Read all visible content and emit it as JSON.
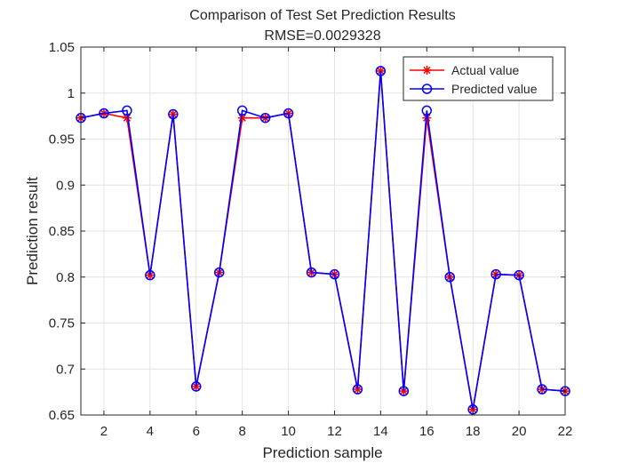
{
  "chart_data": {
    "type": "line",
    "title": "Comparison of Test Set Prediction Results",
    "subtitle": "RMSE=0.0029328",
    "xlabel": "Prediction sample",
    "ylabel": "Prediction result",
    "xlim": [
      1,
      22
    ],
    "ylim": [
      0.65,
      1.05
    ],
    "xticks": [
      2,
      4,
      6,
      8,
      10,
      12,
      14,
      16,
      18,
      20,
      22
    ],
    "yticks": [
      0.65,
      0.7,
      0.75,
      0.8,
      0.85,
      0.9,
      0.95,
      1,
      1.05
    ],
    "xtick_labels": [
      "2",
      "4",
      "6",
      "8",
      "10",
      "12",
      "14",
      "16",
      "18",
      "20",
      "22"
    ],
    "ytick_labels": [
      "0.65",
      "0.7",
      "0.75",
      "0.8",
      "0.85",
      "0.9",
      "0.95",
      "1",
      "1.05"
    ],
    "grid": true,
    "legend_position": "top-right",
    "x": [
      1,
      2,
      3,
      4,
      5,
      6,
      7,
      8,
      9,
      10,
      11,
      12,
      13,
      14,
      15,
      16,
      17,
      18,
      19,
      20,
      21,
      22
    ],
    "series": [
      {
        "name": "Actual value",
        "color": "#ff0000",
        "marker": "asterisk",
        "values": [
          0.973,
          0.978,
          0.973,
          0.802,
          0.977,
          0.681,
          0.805,
          0.973,
          0.973,
          0.978,
          0.805,
          0.803,
          0.678,
          1.024,
          0.676,
          0.973,
          0.8,
          0.656,
          0.803,
          0.802,
          0.678,
          0.676
        ]
      },
      {
        "name": "Predicted value",
        "color": "#0000ff",
        "marker": "circle",
        "values": [
          0.973,
          0.978,
          0.981,
          0.802,
          0.977,
          0.681,
          0.805,
          0.981,
          0.973,
          0.978,
          0.805,
          0.803,
          0.678,
          1.024,
          0.676,
          0.981,
          0.8,
          0.656,
          0.803,
          0.802,
          0.678,
          0.676
        ]
      }
    ]
  }
}
